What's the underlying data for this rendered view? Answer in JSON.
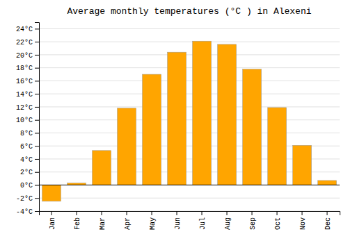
{
  "chart_data": {
    "type": "bar",
    "title": "Average monthly temperatures (°C ) in Alexeni",
    "categories": [
      "Jan",
      "Feb",
      "Mar",
      "Apr",
      "May",
      "Jun",
      "Jul",
      "Aug",
      "Sep",
      "Oct",
      "Nov",
      "Dec"
    ],
    "values": [
      -2.5,
      0.3,
      5.3,
      11.8,
      17.0,
      20.4,
      22.1,
      21.6,
      17.8,
      11.9,
      6.1,
      0.7
    ],
    "color": "#FFA500",
    "ylim": [
      -4,
      25
    ],
    "yticks": [
      {
        "value": -4,
        "label": "-4°C"
      },
      {
        "value": -2,
        "label": "-2°C"
      },
      {
        "value": 0,
        "label": "0°C"
      },
      {
        "value": 2,
        "label": "2°C"
      },
      {
        "value": 4,
        "label": "4°C"
      },
      {
        "value": 6,
        "label": "6°C"
      },
      {
        "value": 8,
        "label": "8°C"
      },
      {
        "value": 10,
        "label": "10°C"
      },
      {
        "value": 12,
        "label": "12°C"
      },
      {
        "value": 14,
        "label": "14°C"
      },
      {
        "value": 16,
        "label": "16°C"
      },
      {
        "value": 18,
        "label": "18°C"
      },
      {
        "value": 20,
        "label": "20°C"
      },
      {
        "value": 22,
        "label": "22°C"
      },
      {
        "value": 24,
        "label": "24°C"
      }
    ],
    "grid": true
  }
}
